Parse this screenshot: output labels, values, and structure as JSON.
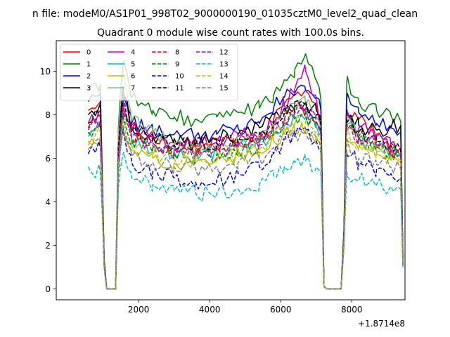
{
  "chart_data": {
    "type": "line",
    "suptitle": "n file: modeM0/AS1P01_998T02_9000000190_01035cztM0_level2_quad_clean",
    "title": "Quadrant 0 module wise count rates with 100.0s bins.",
    "xlabel": "",
    "ylabel": "",
    "x_offset_label": "+1.8714e8",
    "xlim": [
      -320,
      9500
    ],
    "ylim": [
      -0.5,
      11.4
    ],
    "x_ticks": [
      2000,
      4000,
      6000,
      8000
    ],
    "x_tick_labels": [
      "2000",
      "4000",
      "6000",
      "8000"
    ],
    "y_ticks": [
      0,
      2,
      4,
      6,
      8,
      10
    ],
    "y_tick_labels": [
      "0",
      "2",
      "4",
      "6",
      "8",
      "10"
    ],
    "legend_position": "top-left",
    "legend_columns": 4,
    "key_points_x": [
      580,
      920,
      1030,
      1100,
      1350,
      1430,
      1560,
      1800,
      2400,
      3000,
      3600,
      4200,
      4800,
      5400,
      5800,
      6100,
      6400,
      6700,
      7000,
      7130,
      7220,
      7300,
      7700,
      7780,
      7860,
      8200,
      8700,
      9100,
      9380,
      9440
    ],
    "series": [
      {
        "name": "0",
        "color": "#ff0000",
        "dash": "solid",
        "values": [
          8.2,
          8.6,
          1.2,
          0.0,
          0.0,
          6.4,
          9.1,
          7.5,
          7.1,
          6.7,
          6.6,
          6.7,
          6.8,
          7.0,
          7.8,
          8.5,
          8.9,
          9.1,
          8.4,
          7.8,
          0.1,
          0.0,
          0.0,
          2.4,
          8.3,
          7.8,
          7.1,
          6.7,
          6.5,
          1.5
        ]
      },
      {
        "name": "1",
        "color": "#008000",
        "dash": "solid",
        "values": [
          9.1,
          9.4,
          1.4,
          0.0,
          0.0,
          7.4,
          10.4,
          8.8,
          8.2,
          7.9,
          7.8,
          7.9,
          8.1,
          8.3,
          8.9,
          9.6,
          10.1,
          10.8,
          9.6,
          8.7,
          0.1,
          0.0,
          0.0,
          2.7,
          9.5,
          8.6,
          8.2,
          8.0,
          7.7,
          1.7
        ]
      },
      {
        "name": "2",
        "color": "#0000ff",
        "dash": "solid",
        "values": [
          8.6,
          9.0,
          1.3,
          0.0,
          0.0,
          7.0,
          9.3,
          7.6,
          7.3,
          7.1,
          7.0,
          7.1,
          7.4,
          7.6,
          8.3,
          8.8,
          9.0,
          9.1,
          8.8,
          8.2,
          0.1,
          0.0,
          0.0,
          2.6,
          8.7,
          8.1,
          7.6,
          7.4,
          7.2,
          1.1
        ]
      },
      {
        "name": "3",
        "color": "#000000",
        "dash": "solid",
        "values": [
          8.0,
          8.5,
          1.2,
          0.0,
          0.0,
          6.9,
          9.2,
          7.4,
          7.0,
          6.9,
          6.9,
          6.9,
          7.1,
          7.4,
          8.0,
          8.3,
          8.6,
          8.5,
          8.2,
          7.9,
          0.1,
          0.0,
          0.0,
          2.5,
          8.2,
          7.5,
          7.3,
          7.4,
          7.5,
          1.4
        ]
      },
      {
        "name": "4",
        "color": "#bf00bf",
        "dash": "solid",
        "values": [
          7.6,
          8.1,
          1.2,
          0.0,
          0.0,
          6.4,
          8.7,
          7.3,
          7.0,
          6.6,
          6.6,
          6.8,
          7.0,
          7.2,
          7.6,
          8.4,
          9.2,
          10.0,
          8.8,
          7.6,
          0.1,
          0.0,
          0.0,
          2.4,
          7.9,
          7.4,
          7.0,
          6.7,
          6.5,
          1.4
        ]
      },
      {
        "name": "5",
        "color": "#00bfbf",
        "dash": "solid",
        "values": [
          7.0,
          7.4,
          1.1,
          0.0,
          0.0,
          6.0,
          8.0,
          6.9,
          6.5,
          6.3,
          6.2,
          6.3,
          6.5,
          6.7,
          7.2,
          7.5,
          7.8,
          7.9,
          7.5,
          7.2,
          0.1,
          0.0,
          0.0,
          2.2,
          7.5,
          6.9,
          6.5,
          6.3,
          6.2,
          1.3
        ]
      },
      {
        "name": "6",
        "color": "#bfbf00",
        "dash": "solid",
        "values": [
          6.6,
          7.0,
          1.0,
          0.0,
          0.0,
          5.6,
          7.4,
          6.4,
          6.0,
          5.8,
          5.8,
          5.9,
          6.1,
          6.3,
          6.8,
          7.1,
          7.3,
          7.4,
          7.0,
          6.6,
          0.1,
          0.0,
          0.0,
          2.1,
          6.9,
          6.5,
          6.2,
          5.9,
          5.8,
          1.2
        ]
      },
      {
        "name": "7",
        "color": "#7fbf7f",
        "dash": "solid",
        "values": [
          7.1,
          7.5,
          1.1,
          0.0,
          0.0,
          7.1,
          10.1,
          7.7,
          7.2,
          6.6,
          6.4,
          6.5,
          6.7,
          6.9,
          7.5,
          8.0,
          8.3,
          8.5,
          7.9,
          7.4,
          0.1,
          0.0,
          0.0,
          2.3,
          7.6,
          7.0,
          6.6,
          6.3,
          6.0,
          1.2
        ]
      },
      {
        "name": "8",
        "color": "#ff0000",
        "dash": "dashed",
        "values": [
          7.4,
          7.8,
          1.1,
          0.0,
          0.0,
          6.1,
          8.3,
          7.0,
          6.7,
          6.4,
          6.4,
          6.5,
          6.7,
          6.9,
          7.4,
          7.8,
          8.1,
          8.3,
          7.7,
          7.3,
          0.1,
          0.0,
          0.0,
          2.3,
          7.6,
          7.0,
          6.6,
          6.4,
          6.3,
          1.3
        ]
      },
      {
        "name": "9",
        "color": "#008000",
        "dash": "dashed",
        "values": [
          7.2,
          7.6,
          1.1,
          0.0,
          0.0,
          6.0,
          8.1,
          6.8,
          6.5,
          6.2,
          6.1,
          6.2,
          6.4,
          6.6,
          7.2,
          7.6,
          7.9,
          8.0,
          7.5,
          7.1,
          0.1,
          0.0,
          0.0,
          2.2,
          7.4,
          6.9,
          6.5,
          6.2,
          6.1,
          1.3
        ]
      },
      {
        "name": "10",
        "color": "#0000ff",
        "dash": "dashed",
        "values": [
          6.2,
          6.5,
          1.0,
          0.0,
          0.0,
          5.4,
          7.4,
          5.8,
          5.4,
          5.1,
          4.9,
          5.0,
          5.3,
          5.6,
          6.2,
          6.8,
          7.0,
          7.3,
          6.8,
          6.3,
          0.1,
          0.0,
          0.0,
          2.0,
          6.3,
          5.8,
          5.5,
          5.3,
          5.1,
          1.1
        ]
      },
      {
        "name": "11",
        "color": "#000000",
        "dash": "dashed",
        "values": [
          7.6,
          8.0,
          1.2,
          0.0,
          0.0,
          6.5,
          8.6,
          7.2,
          6.9,
          6.6,
          6.6,
          6.7,
          6.9,
          7.1,
          7.7,
          8.1,
          8.4,
          8.6,
          8.0,
          7.5,
          0.1,
          0.0,
          0.0,
          2.4,
          7.8,
          7.2,
          6.8,
          6.6,
          6.4,
          1.3
        ]
      },
      {
        "name": "12",
        "color": "#bf00bf",
        "dash": "dashed",
        "values": [
          7.3,
          7.7,
          1.1,
          0.0,
          0.0,
          6.2,
          8.4,
          7.0,
          6.6,
          6.4,
          6.3,
          6.4,
          6.6,
          6.8,
          7.4,
          7.8,
          8.1,
          8.3,
          7.7,
          7.2,
          0.1,
          0.0,
          0.0,
          2.3,
          7.5,
          7.0,
          6.6,
          6.4,
          6.2,
          1.3
        ]
      },
      {
        "name": "13",
        "color": "#00bfbf",
        "dash": "dashed",
        "values": [
          5.6,
          5.4,
          0.9,
          0.0,
          0.0,
          4.6,
          6.2,
          5.1,
          4.8,
          4.5,
          4.4,
          4.4,
          4.6,
          4.8,
          5.2,
          5.6,
          5.8,
          5.9,
          5.6,
          5.3,
          0.1,
          0.0,
          0.0,
          1.8,
          5.4,
          5.0,
          4.8,
          4.7,
          4.6,
          1.0
        ]
      },
      {
        "name": "14",
        "color": "#bfbf00",
        "dash": "dashed",
        "values": [
          6.8,
          7.2,
          1.0,
          0.0,
          0.0,
          5.8,
          7.8,
          6.6,
          6.2,
          6.0,
          5.9,
          6.0,
          6.2,
          6.4,
          7.0,
          7.4,
          7.6,
          7.7,
          7.2,
          6.8,
          0.1,
          0.0,
          0.0,
          2.1,
          7.1,
          6.6,
          6.3,
          6.0,
          5.9,
          1.2
        ]
      },
      {
        "name": "15",
        "color": "#7f7f7f",
        "dash": "dashed",
        "values": [
          6.4,
          6.8,
          1.0,
          0.0,
          0.0,
          5.6,
          7.5,
          6.1,
          5.8,
          5.6,
          5.5,
          5.6,
          5.8,
          6.0,
          6.5,
          6.9,
          7.1,
          7.2,
          6.8,
          6.4,
          0.1,
          0.0,
          0.0,
          2.0,
          6.5,
          6.0,
          5.7,
          5.6,
          5.5,
          1.1
        ]
      }
    ]
  }
}
